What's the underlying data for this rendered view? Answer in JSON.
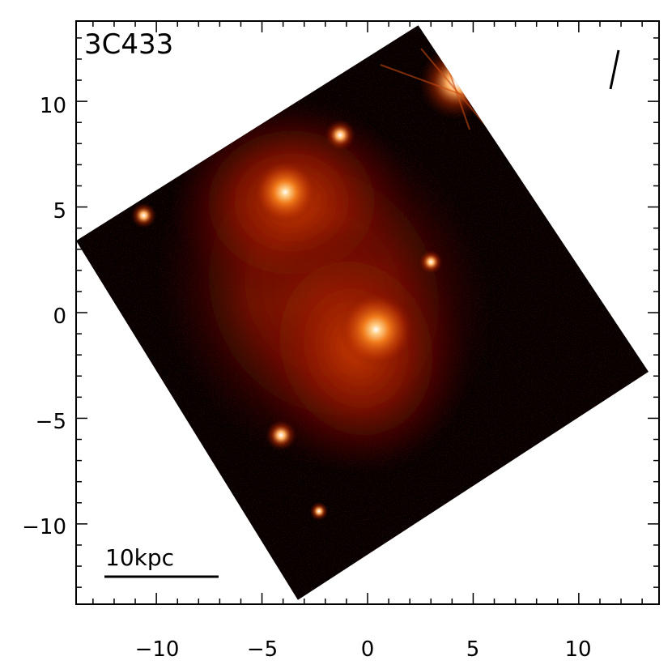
{
  "image": {
    "object_label": "3C433",
    "scale_bar_label": "10kpc",
    "background": "#ffffff",
    "colors": {
      "sky": "#080000",
      "glow": "#a01800",
      "core": "#ffffff"
    },
    "x_axis": {
      "range": [
        -13.8,
        13.8
      ],
      "tick_labels": [
        "−10",
        "−5",
        "0",
        "5",
        "10"
      ],
      "tick_values": [
        -10,
        -5,
        0,
        5,
        10
      ]
    },
    "y_axis": {
      "range": [
        -13.8,
        13.8
      ],
      "tick_labels": [
        "10",
        "5",
        "0",
        "−5",
        "−10"
      ],
      "tick_values": [
        10,
        5,
        0,
        -5,
        -10
      ]
    },
    "field_corners_kpc": [
      [
        2.4,
        13.6
      ],
      [
        13.3,
        -2.8
      ],
      [
        -3.3,
        -13.6
      ],
      [
        -13.8,
        3.4
      ]
    ],
    "sources": [
      {
        "name": "galaxy-south-core",
        "x": 0.4,
        "y": -0.8,
        "brightness": 1.0
      },
      {
        "name": "galaxy-north-west",
        "x": -3.9,
        "y": 5.7,
        "brightness": 0.85
      },
      {
        "name": "companion-north",
        "x": -1.3,
        "y": 8.4,
        "brightness": 0.6
      },
      {
        "name": "bright-star",
        "x": 4.2,
        "y": 10.9,
        "brightness": 1.0
      },
      {
        "name": "knot-east",
        "x": 3.0,
        "y": 2.4,
        "brightness": 0.4
      },
      {
        "name": "point-source-west",
        "x": -10.6,
        "y": 4.6,
        "brightness": 0.45
      },
      {
        "name": "point-source-south",
        "x": -4.1,
        "y": -5.8,
        "brightness": 0.6
      },
      {
        "name": "faint-source-south",
        "x": -2.3,
        "y": -9.4,
        "brightness": 0.25
      }
    ]
  }
}
